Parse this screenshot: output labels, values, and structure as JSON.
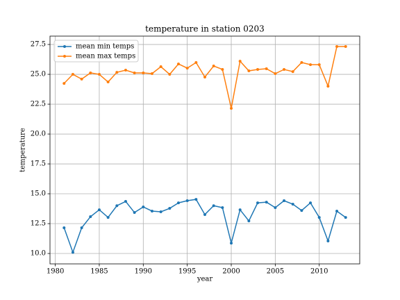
{
  "chart_data": {
    "type": "line",
    "title": "temperature in station 0203",
    "xlabel": "year",
    "ylabel": "temperature",
    "x": [
      1981,
      1982,
      1983,
      1984,
      1985,
      1986,
      1987,
      1988,
      1989,
      1990,
      1991,
      1992,
      1993,
      1994,
      1995,
      1996,
      1997,
      1998,
      1999,
      2000,
      2001,
      2002,
      2003,
      2004,
      2005,
      2006,
      2007,
      2008,
      2009,
      2010,
      2011,
      2012,
      2013
    ],
    "series": [
      {
        "name": "mean min temps",
        "color": "#1f77b4",
        "values": [
          12.15,
          10.1,
          12.15,
          13.08,
          13.66,
          13.02,
          14.0,
          14.36,
          13.43,
          13.9,
          13.55,
          13.49,
          13.78,
          14.24,
          14.42,
          14.53,
          13.26,
          14.0,
          13.84,
          10.87,
          13.66,
          12.73,
          14.24,
          14.3,
          13.84,
          14.42,
          14.13,
          13.6,
          14.24,
          13.02,
          11.05,
          13.55,
          13.02
        ]
      },
      {
        "name": "mean max temps",
        "color": "#ff7f0e",
        "values": [
          24.24,
          25.0,
          24.6,
          25.12,
          25.0,
          24.36,
          25.17,
          25.35,
          25.12,
          25.12,
          25.06,
          25.64,
          25.0,
          25.87,
          25.52,
          25.99,
          24.77,
          25.7,
          25.41,
          22.15,
          26.1,
          25.29,
          25.41,
          25.47,
          25.06,
          25.41,
          25.23,
          25.99,
          25.81,
          25.81,
          24.01,
          27.33,
          27.33
        ]
      }
    ],
    "xlim": [
      1979.4,
      2014.6
    ],
    "xticks": [
      1980,
      1985,
      1990,
      1995,
      2000,
      2005,
      2010
    ],
    "ylim": [
      9.13,
      28.2
    ],
    "yticks": [
      {
        "value": 10,
        "label": "10.0"
      },
      12.5,
      {
        "value": 15,
        "label": "15.0"
      },
      17.5,
      {
        "value": 20,
        "label": "20.0"
      },
      22.5,
      {
        "value": 25,
        "label": "25.0"
      },
      27.5
    ],
    "grid": true,
    "legend": "upper left"
  }
}
